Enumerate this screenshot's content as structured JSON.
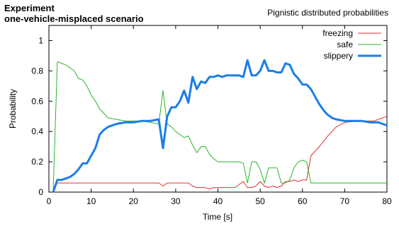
{
  "chart_data": {
    "type": "line",
    "title": "Experiment",
    "subtitle": "one-vehicle-misplaced scenario",
    "right_title": "Pignistic distributed probabilities",
    "xlabel": "Time [s]",
    "ylabel": "Probability",
    "xlim": [
      0,
      80
    ],
    "ylim": [
      0,
      1.1
    ],
    "x_ticks": [
      "0",
      "10",
      "20",
      "30",
      "40",
      "50",
      "60",
      "70",
      "80"
    ],
    "y_ticks": [
      "0",
      "0.2",
      "0.4",
      "0.6",
      "0.8",
      "1"
    ],
    "grid": false,
    "legend_position": "top-right",
    "series": [
      {
        "name": "freezing",
        "color": "#e03030",
        "line_style": "thin",
        "points": [
          [
            1,
            0
          ],
          [
            2,
            0.06
          ],
          [
            26,
            0.06
          ],
          [
            27,
            0.04
          ],
          [
            28,
            0.06
          ],
          [
            33,
            0.06
          ],
          [
            34,
            0.04
          ],
          [
            35,
            0.03
          ],
          [
            36,
            0.03
          ],
          [
            37,
            0.03
          ],
          [
            38,
            0.02
          ],
          [
            39,
            0.03
          ],
          [
            41,
            0.03
          ],
          [
            44,
            0.03
          ],
          [
            46,
            0.07
          ],
          [
            47,
            0.03
          ],
          [
            48,
            0.03
          ],
          [
            49,
            0.04
          ],
          [
            50,
            0.07
          ],
          [
            51,
            0.04
          ],
          [
            52,
            0.03
          ],
          [
            53,
            0.04
          ],
          [
            54,
            0.03
          ],
          [
            55,
            0.04
          ],
          [
            56,
            0.07
          ],
          [
            57,
            0.07
          ],
          [
            58,
            0.08
          ],
          [
            59,
            0.07
          ],
          [
            60,
            0.08
          ],
          [
            61,
            0.08
          ],
          [
            62,
            0.24
          ],
          [
            64,
            0.3
          ],
          [
            66,
            0.37
          ],
          [
            68,
            0.43
          ],
          [
            70,
            0.46
          ],
          [
            74,
            0.47
          ],
          [
            77,
            0.47
          ],
          [
            79,
            0.49
          ],
          [
            80,
            0.5
          ]
        ]
      },
      {
        "name": "safe",
        "color": "#2ab52a",
        "line_style": "thin",
        "points": [
          [
            1,
            0
          ],
          [
            2,
            0.86
          ],
          [
            3,
            0.85
          ],
          [
            4,
            0.84
          ],
          [
            5,
            0.82
          ],
          [
            6,
            0.8
          ],
          [
            7,
            0.75
          ],
          [
            8,
            0.74
          ],
          [
            9,
            0.7
          ],
          [
            10,
            0.64
          ],
          [
            11,
            0.6
          ],
          [
            12,
            0.55
          ],
          [
            14,
            0.49
          ],
          [
            16,
            0.48
          ],
          [
            18,
            0.47
          ],
          [
            20,
            0.47
          ],
          [
            22,
            0.47
          ],
          [
            24,
            0.46
          ],
          [
            26,
            0.45
          ],
          [
            27,
            0.67
          ],
          [
            28,
            0.45
          ],
          [
            29,
            0.43
          ],
          [
            30,
            0.4
          ],
          [
            31,
            0.38
          ],
          [
            32,
            0.36
          ],
          [
            33,
            0.37
          ],
          [
            34,
            0.31
          ],
          [
            35,
            0.26
          ],
          [
            36,
            0.3
          ],
          [
            37,
            0.3
          ],
          [
            38,
            0.25
          ],
          [
            39,
            0.22
          ],
          [
            40,
            0.2
          ],
          [
            45,
            0.2
          ],
          [
            46,
            0.19
          ],
          [
            47,
            0.06
          ],
          [
            48,
            0.2
          ],
          [
            49,
            0.2
          ],
          [
            50,
            0.15
          ],
          [
            51,
            0.06
          ],
          [
            52,
            0.16
          ],
          [
            53,
            0.16
          ],
          [
            54,
            0.16
          ],
          [
            55,
            0.06
          ],
          [
            56,
            0.06
          ],
          [
            57,
            0.08
          ],
          [
            58,
            0.16
          ],
          [
            59,
            0.2
          ],
          [
            60,
            0.21
          ],
          [
            61,
            0.2
          ],
          [
            62,
            0.06
          ],
          [
            80,
            0.06
          ]
        ]
      },
      {
        "name": "slippery",
        "color": "#1a7ee6",
        "line_style": "thick",
        "points": [
          [
            1,
            0
          ],
          [
            2,
            0.08
          ],
          [
            3,
            0.08
          ],
          [
            4,
            0.09
          ],
          [
            5,
            0.1
          ],
          [
            6,
            0.12
          ],
          [
            7,
            0.15
          ],
          [
            8,
            0.19
          ],
          [
            9,
            0.19
          ],
          [
            10,
            0.24
          ],
          [
            11,
            0.29
          ],
          [
            12,
            0.38
          ],
          [
            13,
            0.41
          ],
          [
            14,
            0.43
          ],
          [
            15,
            0.44
          ],
          [
            16,
            0.45
          ],
          [
            18,
            0.46
          ],
          [
            20,
            0.46
          ],
          [
            22,
            0.47
          ],
          [
            24,
            0.47
          ],
          [
            26,
            0.48
          ],
          [
            27,
            0.29
          ],
          [
            28,
            0.5
          ],
          [
            29,
            0.56
          ],
          [
            30,
            0.56
          ],
          [
            31,
            0.6
          ],
          [
            32,
            0.67
          ],
          [
            33,
            0.59
          ],
          [
            34,
            0.76
          ],
          [
            35,
            0.68
          ],
          [
            36,
            0.73
          ],
          [
            37,
            0.72
          ],
          [
            38,
            0.76
          ],
          [
            39,
            0.76
          ],
          [
            40,
            0.77
          ],
          [
            41,
            0.76
          ],
          [
            42,
            0.77
          ],
          [
            45,
            0.77
          ],
          [
            46,
            0.76
          ],
          [
            47,
            0.87
          ],
          [
            48,
            0.77
          ],
          [
            49,
            0.77
          ],
          [
            50,
            0.8
          ],
          [
            51,
            0.87
          ],
          [
            52,
            0.8
          ],
          [
            53,
            0.8
          ],
          [
            54,
            0.79
          ],
          [
            55,
            0.79
          ],
          [
            56,
            0.85
          ],
          [
            57,
            0.84
          ],
          [
            58,
            0.78
          ],
          [
            59,
            0.75
          ],
          [
            60,
            0.71
          ],
          [
            61,
            0.71
          ],
          [
            62,
            0.68
          ],
          [
            63,
            0.63
          ],
          [
            64,
            0.58
          ],
          [
            65,
            0.54
          ],
          [
            66,
            0.51
          ],
          [
            67,
            0.49
          ],
          [
            68,
            0.48
          ],
          [
            70,
            0.47
          ],
          [
            72,
            0.47
          ],
          [
            74,
            0.47
          ],
          [
            76,
            0.46
          ],
          [
            78,
            0.46
          ],
          [
            79,
            0.45
          ],
          [
            80,
            0.44
          ]
        ]
      }
    ]
  }
}
